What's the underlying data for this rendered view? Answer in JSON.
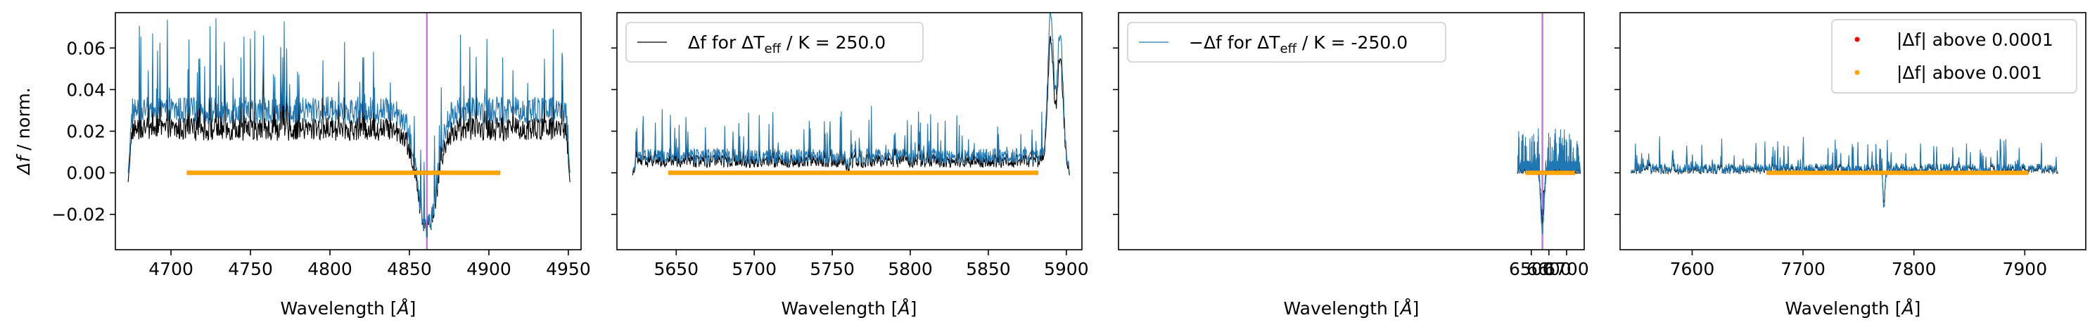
{
  "colors": {
    "spectrum": "#1f77b4",
    "delta_dark": "#000000",
    "threshold_low": "#ff0000",
    "threshold_high": "#ffa500",
    "vline": "#cc77dd"
  },
  "ylabel_prefix": "Δf",
  "ylabel_suffix": " / norm.",
  "xlabel_prefix": "Wavelength [",
  "xlabel_unit": "Å",
  "xlabel_suffix": "]",
  "legends": {
    "p2_line": {
      "pre": "Δf for ΔT",
      "sub": "eff",
      "post": " / K = 250.0"
    },
    "p3_line": {
      "pre": "−Δf for ΔT",
      "sub": "eff",
      "post": " / K = -250.0"
    },
    "p4_low": {
      "pre": "|Δf|",
      "post": " above 0.0001"
    },
    "p4_high": {
      "pre": "|Δf|",
      "post": " above 0.001"
    }
  },
  "chart_data": [
    {
      "type": "line",
      "panel": 1,
      "xlim": [
        4665,
        4958
      ],
      "ylim": [
        -0.037,
        0.077
      ],
      "xticks": [
        4700,
        4750,
        4800,
        4850,
        4900,
        4950
      ],
      "yticks": [
        -0.02,
        0.0,
        0.02,
        0.04,
        0.06
      ],
      "ytick_labels": [
        "−0.02",
        "0.00",
        "0.02",
        "0.04",
        "0.06"
      ],
      "spectrum_range": [
        4673,
        4951
      ],
      "spectrum_baseline": 0.03,
      "spectrum_noise": 0.022,
      "absorption": [
        {
          "center": 4861,
          "depth": 0.055,
          "width": 9
        }
      ],
      "threshold_band": [
        4710,
        4907
      ],
      "vline": 4861
    },
    {
      "type": "line",
      "panel": 2,
      "xlim": [
        5612,
        5910
      ],
      "ylim": [
        -0.037,
        0.077
      ],
      "xticks": [
        5650,
        5700,
        5750,
        5800,
        5850,
        5900
      ],
      "yticks": [
        -0.02,
        0.0,
        0.02,
        0.04,
        0.06
      ],
      "spectrum_range": [
        5622,
        5902
      ],
      "spectrum_baseline": 0.008,
      "spectrum_noise": 0.012,
      "absorption": [
        {
          "center": 5760,
          "depth": 0.004,
          "width": 2
        }
      ],
      "emission": [
        {
          "center": 5890,
          "height": 0.07,
          "width": 2.5
        },
        {
          "center": 5896,
          "height": 0.06,
          "width": 2.5
        }
      ],
      "threshold_band": [
        5645,
        5882
      ],
      "legend": "p2_line"
    },
    {
      "type": "line",
      "panel": 3,
      "xlim": [
        4160,
        6800
      ],
      "ylim": [
        -0.037,
        0.077
      ],
      "xticks": [
        6500,
        6600,
        6700
      ],
      "yticks": [
        -0.02,
        0.0,
        0.02,
        0.04,
        0.06
      ],
      "spectrum_range": [
        6422,
        6778
      ],
      "spectrum_baseline": 0.003,
      "spectrum_noise": 0.01,
      "absorption": [
        {
          "center": 6563,
          "depth": 0.03,
          "width": 14
        }
      ],
      "threshold_band": [
        6467,
        6747
      ],
      "vline": 6563,
      "legend": "p3_line"
    },
    {
      "type": "line",
      "panel": 4,
      "xlim": [
        7535,
        7955
      ],
      "ylim": [
        -0.037,
        0.077
      ],
      "xticks": [
        7600,
        7700,
        7800,
        7900
      ],
      "yticks": [
        -0.02,
        0.0,
        0.02,
        0.04,
        0.06
      ],
      "spectrum_range": [
        7545,
        7930
      ],
      "spectrum_baseline": 0.002,
      "spectrum_noise": 0.008,
      "absorption": [
        {
          "center": 7773,
          "depth": 0.018,
          "width": 1.5
        }
      ],
      "threshold_band": [
        7667,
        7903
      ],
      "legend": "p4"
    }
  ]
}
